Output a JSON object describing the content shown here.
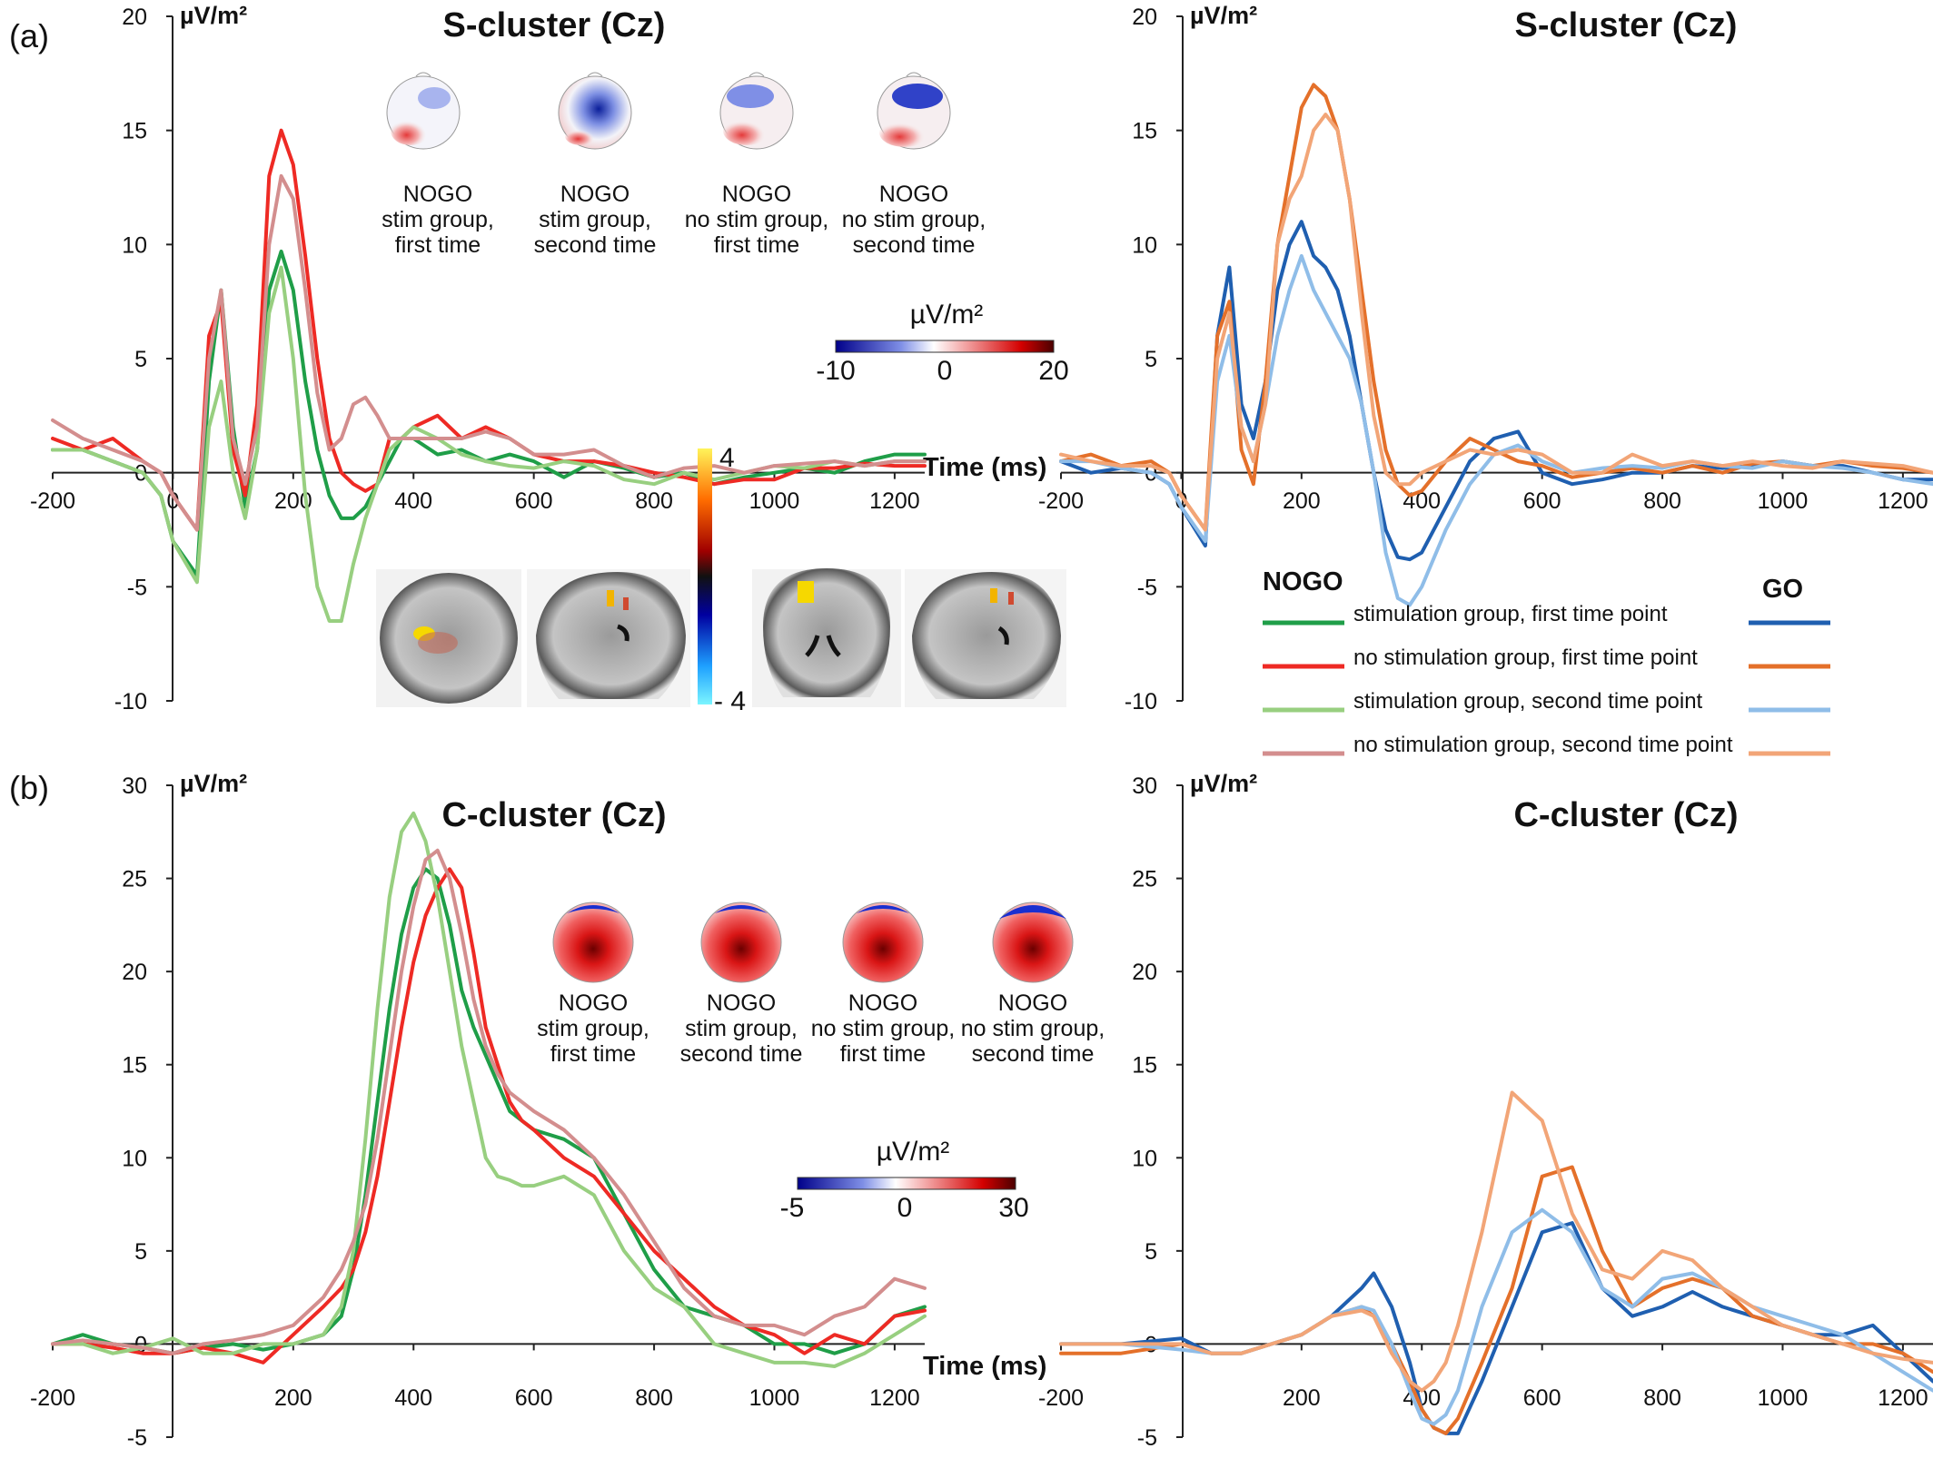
{
  "figure": {
    "panel_a_label": "(a)",
    "panel_b_label": "(b)",
    "legend": {
      "nogo_header": "NOGO",
      "go_header": "GO",
      "items": [
        {
          "label": "stimulation group, first time point",
          "nogo_color": "#1f9e48",
          "go_color": "#1f5fb0"
        },
        {
          "label": "no stimulation group, first time point",
          "nogo_color": "#ee2a24",
          "go_color": "#e4702a"
        },
        {
          "label": "stimulation group, second time point",
          "nogo_color": "#98cf80",
          "go_color": "#8fbde8"
        },
        {
          "label": "no stimulation group, second time point",
          "nogo_color": "#d38e8e",
          "go_color": "#f2a577"
        }
      ]
    },
    "brain_colorbar": {
      "max_label": "4",
      "min_label": "- 4"
    },
    "topo_colorbars": {
      "a": {
        "unit": "µV/m²",
        "labels": [
          "-10",
          "0",
          "20"
        ]
      },
      "b": {
        "unit": "µV/m²",
        "labels": [
          "-5",
          "0",
          "30"
        ]
      }
    },
    "topo_labels": {
      "nogo": "NOGO",
      "conditions": [
        {
          "line2": "stim group,",
          "line3": "first time"
        },
        {
          "line2": "stim group,",
          "line3": "second time"
        },
        {
          "line2": "no stim group,",
          "line3": "first time"
        },
        {
          "line2": "no stim group,",
          "line3": "second time"
        }
      ]
    }
  },
  "chart_data": [
    {
      "id": "a_nogo",
      "type": "line",
      "title": "S-cluster (Cz)",
      "ylabel": "µV/m²",
      "xlabel": "Time (ms)",
      "xlim": [
        -200,
        1250
      ],
      "ylim": [
        -10,
        20
      ],
      "xticks": [
        -200,
        0,
        200,
        400,
        600,
        800,
        1000,
        1200
      ],
      "yticks": [
        -10,
        -5,
        0,
        5,
        10,
        15,
        20
      ],
      "x": [
        -200,
        -150,
        -100,
        -50,
        -20,
        0,
        40,
        60,
        80,
        100,
        120,
        140,
        160,
        180,
        200,
        220,
        240,
        260,
        280,
        300,
        320,
        340,
        360,
        380,
        400,
        440,
        480,
        520,
        560,
        600,
        650,
        700,
        750,
        800,
        850,
        900,
        950,
        1000,
        1050,
        1100,
        1150,
        1200,
        1250
      ],
      "series": [
        {
          "name": "stimulation group, first time point",
          "color": "#1f9e48",
          "values": [
            1,
            1,
            0.5,
            0,
            -1,
            -3,
            -4.5,
            4,
            8,
            2,
            -1.5,
            1,
            8,
            9.7,
            8,
            4,
            1,
            -1,
            -2,
            -2,
            -1.5,
            -0.5,
            0.5,
            1.5,
            1.5,
            0.8,
            1,
            0.5,
            0.8,
            0.5,
            -0.2,
            0.5,
            0.2,
            -0.2,
            0,
            -0.5,
            -0.2,
            0,
            0.2,
            0,
            0.5,
            0.8,
            0.8
          ]
        },
        {
          "name": "no stimulation group, first time point",
          "color": "#ee2a24",
          "values": [
            1.5,
            1,
            1.5,
            0.5,
            0,
            -1,
            -2.5,
            6,
            7.5,
            1,
            -1,
            3,
            13,
            15,
            13.5,
            9.5,
            5,
            1.5,
            0,
            -0.5,
            -0.8,
            -0.5,
            1.5,
            1.5,
            2,
            2.5,
            1.5,
            2,
            1.5,
            0.8,
            0.5,
            0.5,
            0.3,
            0,
            -0.2,
            -0.5,
            -0.3,
            -0.3,
            0.2,
            0.2,
            0.4,
            0.3,
            0.3
          ]
        },
        {
          "name": "stimulation group, second time point",
          "color": "#98cf80",
          "values": [
            1,
            1,
            0.5,
            0,
            -1,
            -3,
            -4.8,
            2,
            4,
            0,
            -2,
            1,
            7,
            9,
            5,
            -1,
            -5,
            -6.5,
            -6.5,
            -4,
            -2,
            -0.5,
            1,
            1.5,
            2,
            1.5,
            0.8,
            0.5,
            0.3,
            0.2,
            0.5,
            0.3,
            -0.3,
            -0.5,
            0,
            -0.3,
            0,
            0.3,
            0.2,
            0.5,
            0.3,
            0.5,
            0.5
          ]
        },
        {
          "name": "no stimulation group, second time point",
          "color": "#d38e8e",
          "values": [
            2.3,
            1.5,
            1,
            0.5,
            0,
            -1,
            -2.5,
            5,
            8,
            1.5,
            -0.5,
            2,
            10,
            13,
            12,
            8,
            3.5,
            1,
            1.5,
            3,
            3.3,
            2.5,
            1.5,
            1.5,
            1.5,
            1.5,
            1.5,
            1.8,
            1.5,
            0.8,
            0.8,
            1,
            0.3,
            -0.2,
            0.2,
            0.3,
            0,
            0.3,
            0.4,
            0.5,
            0.3,
            0.5,
            0.5
          ]
        }
      ]
    },
    {
      "id": "a_go",
      "type": "line",
      "title": "S-cluster (Cz)",
      "ylabel": "µV/m²",
      "xlabel": "",
      "xlim": [
        -200,
        1250
      ],
      "ylim": [
        -10,
        20
      ],
      "xticks": [
        -200,
        0,
        200,
        400,
        600,
        800,
        1000,
        1200
      ],
      "yticks": [
        -10,
        -5,
        0,
        5,
        10,
        15,
        20
      ],
      "x": [
        -200,
        -150,
        -100,
        -50,
        -20,
        0,
        40,
        60,
        80,
        100,
        120,
        140,
        160,
        180,
        200,
        220,
        240,
        260,
        280,
        300,
        320,
        340,
        360,
        380,
        400,
        440,
        480,
        520,
        560,
        600,
        650,
        700,
        750,
        800,
        850,
        900,
        950,
        1000,
        1050,
        1100,
        1150,
        1200,
        1250
      ],
      "series": [
        {
          "name": "stimulation group, first time point",
          "color": "#1f5fb0",
          "values": [
            0.5,
            0,
            0.2,
            0,
            -0.5,
            -1.5,
            -3.2,
            6,
            9,
            3,
            1.5,
            4,
            8,
            10,
            11,
            9.5,
            9,
            8,
            6,
            3,
            0,
            -2.5,
            -3.7,
            -3.8,
            -3.5,
            -1.5,
            0.5,
            1.5,
            1.8,
            0,
            -0.5,
            -0.3,
            0,
            0,
            0.3,
            0.2,
            0.3,
            0.5,
            0.3,
            0.3,
            0,
            -0.3,
            -0.3
          ]
        },
        {
          "name": "no stimulation group, first time point",
          "color": "#e4702a",
          "values": [
            0.5,
            0.8,
            0.3,
            0.5,
            0,
            -1,
            -2.5,
            6,
            7.5,
            1,
            -0.5,
            4,
            10,
            13,
            16,
            17,
            16.5,
            15,
            12,
            8,
            4,
            1,
            -0.5,
            -1,
            -0.8,
            0.5,
            1.5,
            1,
            0.5,
            0.3,
            -0.2,
            0,
            0.2,
            0,
            0.3,
            0,
            0.4,
            0.5,
            0.3,
            0.5,
            0.3,
            0.2,
            0
          ]
        },
        {
          "name": "stimulation group, second time point",
          "color": "#8fbde8",
          "values": [
            0.5,
            0.5,
            0.2,
            0,
            -0.5,
            -1.5,
            -3,
            4,
            6,
            2,
            0.5,
            3,
            6,
            8,
            9.5,
            8,
            7,
            6,
            5,
            3,
            0,
            -3.5,
            -5.5,
            -5.8,
            -5,
            -2.5,
            -0.5,
            0.8,
            1.2,
            0.5,
            0,
            0.2,
            0.3,
            0.2,
            0.5,
            0.3,
            0.2,
            0.5,
            0.3,
            0.2,
            0,
            -0.3,
            -0.5
          ]
        },
        {
          "name": "no stimulation group, second time point",
          "color": "#f2a577",
          "values": [
            0.8,
            0.5,
            0.3,
            0.3,
            0,
            -1,
            -2.5,
            5,
            7,
            2,
            0.5,
            3,
            10,
            12,
            13,
            15,
            15.7,
            15,
            12,
            7,
            2.5,
            0,
            -0.5,
            -0.5,
            0,
            0.5,
            1,
            0.8,
            1,
            0.8,
            0,
            0,
            0.8,
            0.3,
            0.5,
            0.3,
            0.5,
            0.3,
            0.2,
            0.5,
            0.4,
            0.3,
            0
          ]
        }
      ]
    },
    {
      "id": "b_nogo",
      "type": "line",
      "title": "C-cluster (Cz)",
      "ylabel": "µV/m²",
      "xlabel": "Time (ms)",
      "xlim": [
        -200,
        1250
      ],
      "ylim": [
        -5,
        30
      ],
      "xticks": [
        -200,
        200,
        400,
        600,
        800,
        1000,
        1200
      ],
      "yticks": [
        -5,
        0,
        5,
        10,
        15,
        20,
        25,
        30
      ],
      "x": [
        -200,
        -150,
        -100,
        -50,
        0,
        50,
        100,
        150,
        200,
        250,
        280,
        300,
        320,
        340,
        360,
        380,
        400,
        420,
        440,
        460,
        480,
        500,
        520,
        540,
        560,
        580,
        600,
        650,
        700,
        750,
        800,
        850,
        900,
        950,
        1000,
        1050,
        1100,
        1150,
        1200,
        1250
      ],
      "series": [
        {
          "name": "stimulation group, first time point",
          "color": "#1f9e48",
          "values": [
            0,
            0.5,
            0,
            -0.2,
            -0.5,
            -0.2,
            0,
            -0.3,
            0,
            0.5,
            1.5,
            4,
            8,
            13,
            18,
            22,
            24.5,
            25.5,
            25,
            22.5,
            19,
            17,
            15.5,
            14,
            12.5,
            12,
            11.5,
            11,
            10,
            7,
            4,
            2,
            1.5,
            1,
            0,
            0,
            -0.5,
            0,
            1.5,
            2
          ]
        },
        {
          "name": "no stimulation group, first time point",
          "color": "#ee2a24",
          "values": [
            0,
            0,
            -0.2,
            -0.5,
            -0.5,
            -0.2,
            -0.5,
            -1,
            0.5,
            2,
            3,
            4,
            6,
            9,
            13,
            17,
            20.5,
            23,
            24.5,
            25.5,
            24.5,
            21,
            17,
            15,
            13,
            12,
            11.5,
            10,
            9,
            7,
            5,
            3.5,
            2,
            1,
            0.5,
            -0.5,
            0.5,
            0,
            1.5,
            1.8
          ]
        },
        {
          "name": "stimulation group, second time point",
          "color": "#98cf80",
          "values": [
            0,
            0,
            -0.5,
            -0.2,
            0.3,
            -0.5,
            -0.5,
            0,
            0,
            0.5,
            2,
            5,
            11,
            18,
            24,
            27.5,
            28.5,
            27,
            24,
            20,
            16,
            13,
            10,
            9,
            8.8,
            8.5,
            8.5,
            9,
            8,
            5,
            3,
            2,
            0,
            -0.5,
            -1,
            -1,
            -1.2,
            -0.5,
            0.5,
            1.5
          ]
        },
        {
          "name": "no stimulation group, second time point",
          "color": "#d38e8e",
          "values": [
            0,
            0.2,
            0,
            -0.2,
            -0.5,
            0,
            0.2,
            0.5,
            1,
            2.5,
            4,
            5.5,
            7.5,
            11,
            15.5,
            20,
            23.5,
            26,
            26.5,
            25,
            22,
            18.5,
            16,
            14.5,
            13.5,
            13,
            12.5,
            11.5,
            10,
            8,
            5.5,
            3,
            1.5,
            1,
            1,
            0.5,
            1.5,
            2,
            3.5,
            3
          ]
        }
      ]
    },
    {
      "id": "b_go",
      "type": "line",
      "title": "C-cluster (Cz)",
      "ylabel": "µV/m²",
      "xlabel": "",
      "xlim": [
        -200,
        1250
      ],
      "ylim": [
        -5,
        30
      ],
      "xticks": [
        -200,
        200,
        400,
        600,
        800,
        1000,
        1200
      ],
      "yticks": [
        -5,
        0,
        5,
        10,
        15,
        20,
        25,
        30
      ],
      "x": [
        -200,
        -100,
        0,
        50,
        100,
        150,
        200,
        250,
        300,
        320,
        350,
        380,
        400,
        420,
        440,
        460,
        500,
        550,
        600,
        650,
        700,
        750,
        800,
        850,
        900,
        950,
        1000,
        1050,
        1100,
        1150,
        1200,
        1250
      ],
      "series": [
        {
          "name": "stimulation group, first time point",
          "color": "#1f5fb0",
          "values": [
            0,
            0,
            0.3,
            -0.5,
            -0.5,
            0,
            0.5,
            1.5,
            3,
            3.8,
            2,
            -1,
            -3.5,
            -4.5,
            -4.8,
            -4.8,
            -2,
            2,
            6,
            6.5,
            3,
            1.5,
            2,
            2.8,
            2,
            1.5,
            1,
            0.5,
            0.5,
            1,
            -0.5,
            -2
          ]
        },
        {
          "name": "no stimulation group, first time point",
          "color": "#e4702a",
          "values": [
            -0.5,
            -0.5,
            0,
            -0.5,
            -0.5,
            0,
            0.5,
            1.5,
            2,
            1.5,
            0,
            -2,
            -3.5,
            -4.5,
            -4.8,
            -4,
            -1,
            3,
            9,
            9.5,
            5,
            2,
            3,
            3.5,
            3,
            1.5,
            1,
            0.5,
            0,
            0,
            -0.5,
            -1.5
          ]
        },
        {
          "name": "stimulation group, second time point",
          "color": "#8fbde8",
          "values": [
            0,
            0,
            -0.3,
            -0.5,
            -0.5,
            0,
            0.5,
            1.5,
            2,
            1.8,
            0,
            -2.5,
            -4,
            -4.3,
            -3.8,
            -2.5,
            2,
            6,
            7.2,
            6,
            3,
            2,
            3.5,
            3.8,
            3,
            2,
            1.5,
            1,
            0.5,
            -0.5,
            -1.5,
            -2.5
          ]
        },
        {
          "name": "no stimulation group, second time point",
          "color": "#f2a577",
          "values": [
            0,
            0,
            0,
            -0.5,
            -0.5,
            0,
            0.5,
            1.5,
            1.8,
            1.5,
            -0.5,
            -2,
            -2.5,
            -2,
            -1,
            1,
            6,
            13.5,
            12,
            7,
            4,
            3.5,
            5,
            4.5,
            3,
            2,
            1,
            0.5,
            0,
            -0.5,
            -0.8,
            -1
          ]
        }
      ]
    }
  ]
}
